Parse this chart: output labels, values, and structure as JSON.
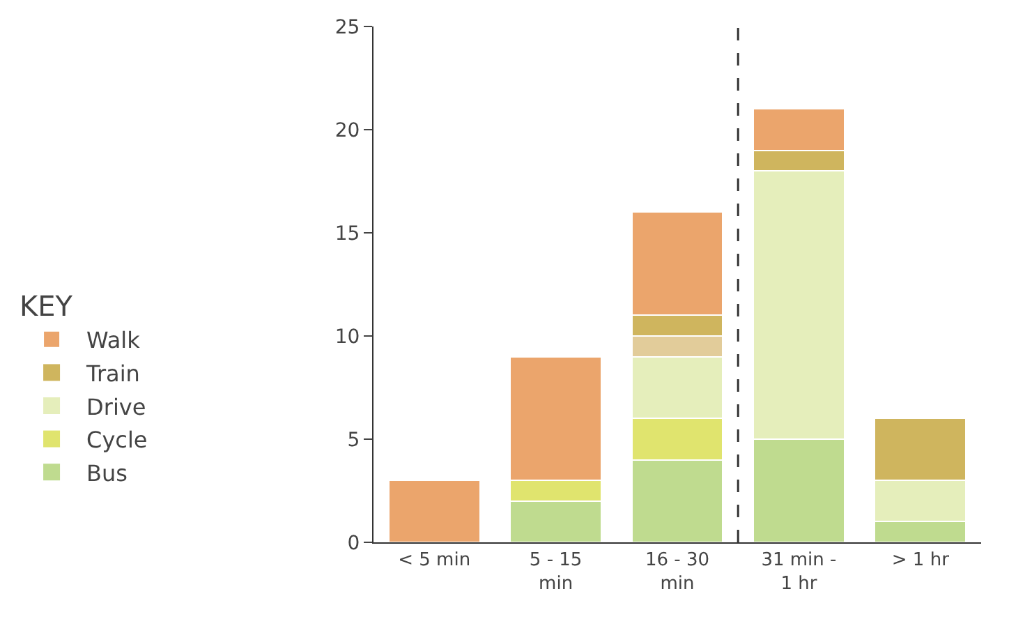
{
  "chart_data": {
    "type": "bar",
    "stacked": true,
    "legend_title": "KEY",
    "legend": "left",
    "categories": [
      "< 5 min",
      "5 - 15 min",
      "16 - 30 min",
      "31 min - 1 hr",
      "> 1 hr"
    ],
    "series": [
      {
        "name": "Bus",
        "color": "#bfdb8f",
        "values": [
          0,
          2,
          4,
          5,
          1
        ]
      },
      {
        "name": "Cycle",
        "color": "#e0e46e",
        "values": [
          0,
          1,
          2,
          0,
          0
        ]
      },
      {
        "name": "Drive",
        "color": "#e5eebb",
        "values": [
          0,
          0,
          3,
          13,
          2
        ]
      },
      {
        "color": "#e2cc9a",
        "values": [
          0,
          0,
          1,
          0,
          0
        ]
      },
      {
        "name": "Train",
        "color": "#cfb55e",
        "values": [
          0,
          0,
          1,
          1,
          3
        ]
      },
      {
        "name": "Walk",
        "color": "#eba56c",
        "values": [
          3,
          6,
          5,
          2,
          0
        ]
      }
    ],
    "ylim": [
      0,
      25
    ],
    "yticks": [
      0,
      5,
      10,
      15,
      20,
      25
    ]
  }
}
